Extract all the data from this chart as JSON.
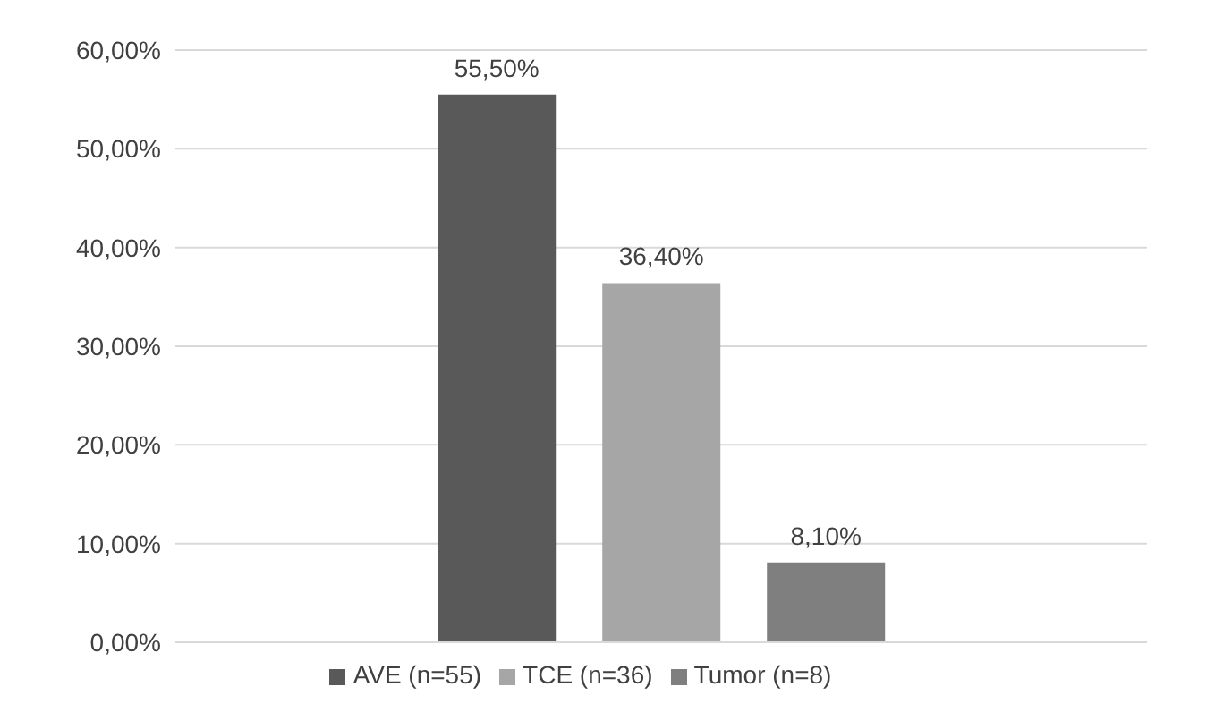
{
  "chart_data": {
    "type": "bar",
    "categories": [
      null
    ],
    "series": [
      {
        "name": "AVE (n=55)",
        "color": "#595959",
        "values": [
          55.5
        ],
        "value_labels": [
          "55,50%"
        ]
      },
      {
        "name": "TCE (n=36)",
        "color": "#a6a6a6",
        "values": [
          36.4
        ],
        "value_labels": [
          "36,40%"
        ]
      },
      {
        "name": "Tumor (n=8)",
        "color": "#7f7f7f",
        "values": [
          8.1
        ],
        "value_labels": [
          "8,10%"
        ]
      }
    ],
    "ylim": [
      0,
      60
    ],
    "yticks": [
      {
        "value": 0,
        "label": "0,00%"
      },
      {
        "value": 10,
        "label": "10,00%"
      },
      {
        "value": 20,
        "label": "20,00%"
      },
      {
        "value": 30,
        "label": "30,00%"
      },
      {
        "value": 40,
        "label": "40,00%"
      },
      {
        "value": 50,
        "label": "50,00%"
      },
      {
        "value": 60,
        "label": "60,00%"
      }
    ],
    "grid": "y",
    "legend": "bottom"
  }
}
